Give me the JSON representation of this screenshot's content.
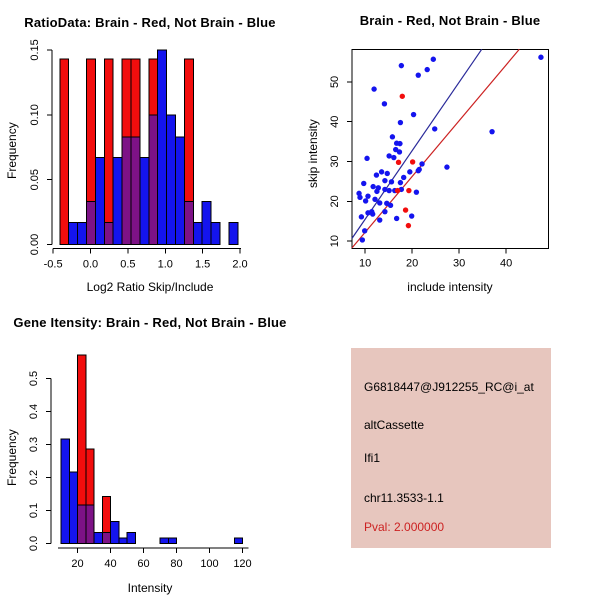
{
  "figure": {
    "background": "#ffffff",
    "colors": {
      "red": "#f20d0d",
      "blue": "#1414ee",
      "purple": "#7d1286",
      "line_blue": "#2a2a9a",
      "line_red": "#cc2222",
      "axis": "#000000"
    }
  },
  "chart_data": [
    {
      "id": "ratio_hist",
      "type": "bar",
      "subtype": "overlaid-histogram",
      "title": "RatioData: Brain - Red, Not Brain - Blue",
      "xlabel": "Log2 Ratio Skip/Include",
      "ylabel": "Frequency",
      "xticks": {
        "values": [
          -0.5,
          0.0,
          0.5,
          1.0,
          1.5,
          2.0
        ],
        "labels": [
          "-0.5",
          "0.0",
          "0.5",
          "1.0",
          "1.5",
          "2.0"
        ]
      },
      "yticks": {
        "values": [
          0,
          0.05,
          0.1,
          0.15
        ],
        "labels": [
          "0.00",
          "0.05",
          "0.10",
          "0.15"
        ]
      },
      "ylim": [
        0,
        0.15
      ],
      "bin_start": -0.41,
      "bin_width": 0.119,
      "series": [
        {
          "name": "Brain (red)",
          "color_key": "red",
          "freq": [
            0.143,
            0,
            0,
            0.143,
            0,
            0.143,
            0,
            0.143,
            0.143,
            0,
            0.143,
            0,
            0,
            0,
            0.143,
            0,
            0,
            0,
            0,
            0
          ]
        },
        {
          "name": "Not Brain (blue)",
          "color_key": "blue",
          "freq": [
            0,
            0.017,
            0.017,
            0.033,
            0.067,
            0.017,
            0.067,
            0.083,
            0.083,
            0.067,
            0.1,
            0.15,
            0.1,
            0.083,
            0.033,
            0.017,
            0.033,
            0.017,
            0,
            0.017
          ]
        }
      ]
    },
    {
      "id": "scatter",
      "type": "scatter",
      "title": "Brain - Red, Not Brain - Blue",
      "xlabel": "include intensity",
      "ylabel": "skip intensity",
      "xticks": [
        10,
        20,
        30,
        40
      ],
      "yticks": [
        10,
        20,
        30,
        40,
        50
      ],
      "xlim": [
        7.2,
        49.0
      ],
      "ylim": [
        8.2,
        58.2
      ],
      "series": [
        {
          "name": "Not Brain (blue)",
          "color_key": "blue",
          "points": [
            [
              24.5,
              55.7
            ],
            [
              17.7,
              54.1
            ],
            [
              21.3,
              51.7
            ],
            [
              23.2,
              53.1
            ],
            [
              11.9,
              48.2
            ],
            [
              14.1,
              44.5
            ],
            [
              17.5,
              39.8
            ],
            [
              20.3,
              41.8
            ],
            [
              24.8,
              38.2
            ],
            [
              37.0,
              37.5
            ],
            [
              47.4,
              56.2
            ],
            [
              27.4,
              28.6
            ],
            [
              21.5,
              28.0
            ],
            [
              22.1,
              29.4
            ],
            [
              15.8,
              36.2
            ],
            [
              16.7,
              34.6
            ],
            [
              16.5,
              33.0
            ],
            [
              17.4,
              34.5
            ],
            [
              10.4,
              30.8
            ],
            [
              15.1,
              31.4
            ],
            [
              16.1,
              31.0
            ],
            [
              17.3,
              32.4
            ],
            [
              14.7,
              27.0
            ],
            [
              12.4,
              26.6
            ],
            [
              13.5,
              27.4
            ],
            [
              15.6,
              24.9
            ],
            [
              14.2,
              25.2
            ],
            [
              9.7,
              24.5
            ],
            [
              11.7,
              23.7
            ],
            [
              12.8,
              23.4
            ],
            [
              14.2,
              23.0
            ],
            [
              15.1,
              22.7
            ],
            [
              16.3,
              22.7
            ],
            [
              17.7,
              23.0
            ],
            [
              8.7,
              22.0
            ],
            [
              8.9,
              21.0
            ],
            [
              10.6,
              21.3
            ],
            [
              10.1,
              20.1
            ],
            [
              12.1,
              20.5
            ],
            [
              13.1,
              19.6
            ],
            [
              15.4,
              19.0
            ],
            [
              14.2,
              17.4
            ],
            [
              10.6,
              17.1
            ],
            [
              11.6,
              16.8
            ],
            [
              9.2,
              16.1
            ],
            [
              13.1,
              15.3
            ],
            [
              16.7,
              15.7
            ],
            [
              19.9,
              16.3
            ],
            [
              9.9,
              12.6
            ],
            [
              9.4,
              10.3
            ],
            [
              17.5,
              24.7
            ],
            [
              21.3,
              27.7
            ],
            [
              14.6,
              19.5
            ],
            [
              11.4,
              17.4
            ],
            [
              19.5,
              27.4
            ],
            [
              20.9,
              22.3
            ],
            [
              18.2,
              26.0
            ],
            [
              12.5,
              22.5
            ]
          ]
        },
        {
          "name": "Brain (red)",
          "color_key": "red",
          "points": [
            [
              17.9,
              46.4
            ],
            [
              17.1,
              29.8
            ],
            [
              20.1,
              29.9
            ],
            [
              16.9,
              22.7
            ],
            [
              19.3,
              22.7
            ],
            [
              18.6,
              17.8
            ],
            [
              19.2,
              13.9
            ]
          ]
        }
      ],
      "lines": [
        {
          "color_key": "line_blue",
          "x1": 7.2,
          "y1": 10.7,
          "x2": 34.8,
          "y2": 58.2
        },
        {
          "color_key": "line_red",
          "x1": 7.2,
          "y1": 8.3,
          "x2": 42.8,
          "y2": 58.2
        }
      ]
    },
    {
      "id": "intensity_hist",
      "type": "bar",
      "subtype": "overlaid-histogram",
      "title": "Gene Itensity: Brain - Red, Not Brain - Blue",
      "xlabel": "Intensity",
      "ylabel": "Frequency",
      "xticks": {
        "values": [
          20,
          40,
          60,
          80,
          100,
          120
        ],
        "labels": [
          "20",
          "40",
          "60",
          "80",
          "100",
          "120"
        ]
      },
      "yticks": {
        "values": [
          0,
          0.1,
          0.2,
          0.3,
          0.4,
          0.5
        ],
        "labels": [
          "0.0",
          "0.1",
          "0.2",
          "0.3",
          "0.4",
          "0.5"
        ]
      },
      "ylim": [
        0,
        0.57
      ],
      "bin_start": 10,
      "bin_width": 5,
      "series": [
        {
          "name": "Brain (red)",
          "color_key": "red",
          "freq": [
            0,
            0,
            0.571,
            0.286,
            0,
            0.143,
            0,
            0,
            0,
            0,
            0,
            0,
            0,
            0,
            0,
            0,
            0,
            0,
            0,
            0,
            0,
            0
          ]
        },
        {
          "name": "Not Brain (blue)",
          "color_key": "blue",
          "freq": [
            0.317,
            0.217,
            0.117,
            0.117,
            0.033,
            0.033,
            0.067,
            0.017,
            0.033,
            0,
            0,
            0,
            0.017,
            0.017,
            0,
            0,
            0,
            0,
            0,
            0,
            0,
            0.017
          ]
        }
      ]
    }
  ],
  "info_panel": {
    "background": "#e7c6be",
    "lines": [
      {
        "text": "G6818447@J912255_RC@i_at",
        "color": "#000000"
      },
      {
        "text": "altCassette",
        "color": "#000000"
      },
      {
        "text": "Ifi1",
        "color": "#000000"
      },
      {
        "text": "chr11.3533-1.1",
        "color": "#000000"
      },
      {
        "text": "Pval: 2.000000",
        "color": "#cc2222"
      }
    ]
  }
}
